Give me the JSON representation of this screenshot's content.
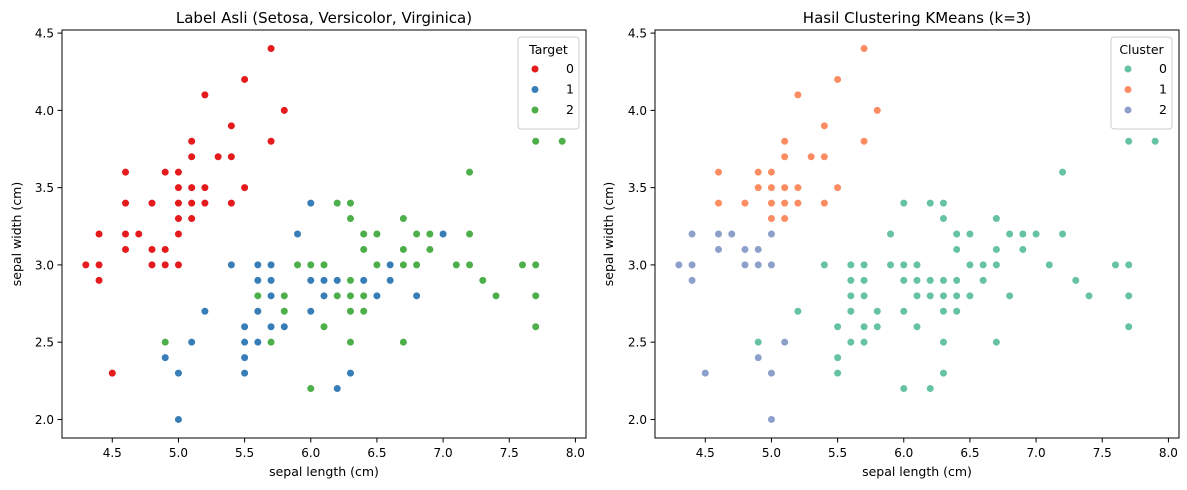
{
  "chart_data": [
    {
      "type": "scatter",
      "title": "Label Asli (Setosa, Versicolor, Virginica)",
      "xlabel": "sepal length (cm)",
      "ylabel": "sepal width (cm)",
      "xlim": [
        4.12,
        8.08
      ],
      "ylim": [
        1.88,
        4.52
      ],
      "xticks": [
        "4.5",
        "5.0",
        "5.5",
        "6.0",
        "6.5",
        "7.0",
        "7.5",
        "8.0"
      ],
      "yticks": [
        "2.0",
        "2.5",
        "3.0",
        "3.5",
        "4.0",
        "4.5"
      ],
      "legend_title": "Target",
      "legend_position": "top-right",
      "grid": false,
      "series": [
        {
          "name": "0",
          "color": "#e41a1c",
          "points": [
            [
              5.1,
              3.5
            ],
            [
              4.9,
              3.0
            ],
            [
              4.7,
              3.2
            ],
            [
              4.6,
              3.1
            ],
            [
              5.0,
              3.6
            ],
            [
              5.4,
              3.9
            ],
            [
              4.6,
              3.4
            ],
            [
              5.0,
              3.4
            ],
            [
              4.4,
              2.9
            ],
            [
              4.9,
              3.1
            ],
            [
              5.4,
              3.7
            ],
            [
              4.8,
              3.4
            ],
            [
              4.8,
              3.0
            ],
            [
              4.3,
              3.0
            ],
            [
              5.8,
              4.0
            ],
            [
              5.7,
              4.4
            ],
            [
              5.4,
              3.9
            ],
            [
              5.1,
              3.5
            ],
            [
              5.7,
              3.8
            ],
            [
              5.1,
              3.8
            ],
            [
              5.4,
              3.4
            ],
            [
              5.1,
              3.7
            ],
            [
              4.6,
              3.6
            ],
            [
              5.1,
              3.3
            ],
            [
              4.8,
              3.4
            ],
            [
              5.0,
              3.0
            ],
            [
              5.0,
              3.4
            ],
            [
              5.2,
              3.5
            ],
            [
              5.2,
              3.4
            ],
            [
              4.7,
              3.2
            ],
            [
              4.8,
              3.1
            ],
            [
              5.4,
              3.4
            ],
            [
              5.2,
              4.1
            ],
            [
              5.5,
              4.2
            ],
            [
              4.9,
              3.1
            ],
            [
              5.0,
              3.2
            ],
            [
              5.5,
              3.5
            ],
            [
              4.9,
              3.6
            ],
            [
              4.4,
              3.0
            ],
            [
              5.1,
              3.4
            ],
            [
              5.0,
              3.5
            ],
            [
              4.5,
              2.3
            ],
            [
              4.4,
              3.2
            ],
            [
              5.0,
              3.5
            ],
            [
              5.1,
              3.8
            ],
            [
              4.8,
              3.0
            ],
            [
              5.1,
              3.8
            ],
            [
              4.6,
              3.2
            ],
            [
              5.3,
              3.7
            ],
            [
              5.0,
              3.3
            ]
          ]
        },
        {
          "name": "1",
          "color": "#377eb8",
          "points": [
            [
              7.0,
              3.2
            ],
            [
              6.4,
              3.2
            ],
            [
              6.9,
              3.1
            ],
            [
              5.5,
              2.3
            ],
            [
              6.5,
              2.8
            ],
            [
              5.7,
              2.8
            ],
            [
              6.3,
              3.3
            ],
            [
              4.9,
              2.4
            ],
            [
              6.6,
              2.9
            ],
            [
              5.2,
              2.7
            ],
            [
              5.0,
              2.0
            ],
            [
              5.9,
              3.0
            ],
            [
              6.0,
              2.2
            ],
            [
              6.1,
              2.9
            ],
            [
              5.6,
              2.9
            ],
            [
              6.7,
              3.1
            ],
            [
              5.6,
              3.0
            ],
            [
              5.8,
              2.7
            ],
            [
              6.2,
              2.2
            ],
            [
              5.6,
              2.5
            ],
            [
              5.9,
              3.2
            ],
            [
              6.1,
              2.8
            ],
            [
              6.3,
              2.5
            ],
            [
              6.1,
              2.8
            ],
            [
              6.4,
              2.9
            ],
            [
              6.6,
              3.0
            ],
            [
              6.8,
              2.8
            ],
            [
              6.7,
              3.0
            ],
            [
              6.0,
              2.9
            ],
            [
              5.7,
              2.6
            ],
            [
              5.5,
              2.4
            ],
            [
              5.5,
              2.4
            ],
            [
              5.8,
              2.7
            ],
            [
              6.0,
              2.7
            ],
            [
              5.4,
              3.0
            ],
            [
              6.0,
              3.4
            ],
            [
              6.7,
              3.1
            ],
            [
              6.3,
              2.3
            ],
            [
              5.6,
              3.0
            ],
            [
              5.5,
              2.5
            ],
            [
              5.5,
              2.6
            ],
            [
              6.1,
              3.0
            ],
            [
              5.8,
              2.6
            ],
            [
              5.0,
              2.3
            ],
            [
              5.6,
              2.7
            ],
            [
              5.7,
              3.0
            ],
            [
              5.7,
              2.9
            ],
            [
              6.2,
              2.9
            ],
            [
              5.1,
              2.5
            ],
            [
              5.7,
              2.8
            ]
          ]
        },
        {
          "name": "2",
          "color": "#4daf4a",
          "points": [
            [
              6.3,
              3.3
            ],
            [
              5.8,
              2.7
            ],
            [
              7.1,
              3.0
            ],
            [
              6.3,
              2.9
            ],
            [
              6.5,
              3.0
            ],
            [
              7.6,
              3.0
            ],
            [
              4.9,
              2.5
            ],
            [
              7.3,
              2.9
            ],
            [
              6.7,
              2.5
            ],
            [
              7.2,
              3.6
            ],
            [
              6.5,
              3.2
            ],
            [
              6.4,
              2.7
            ],
            [
              6.8,
              3.0
            ],
            [
              5.7,
              2.5
            ],
            [
              5.8,
              2.8
            ],
            [
              6.4,
              3.2
            ],
            [
              6.5,
              3.0
            ],
            [
              7.7,
              3.8
            ],
            [
              7.7,
              2.6
            ],
            [
              6.0,
              2.2
            ],
            [
              6.9,
              3.2
            ],
            [
              5.6,
              2.8
            ],
            [
              7.7,
              2.8
            ],
            [
              6.3,
              2.7
            ],
            [
              6.7,
              3.3
            ],
            [
              7.2,
              3.2
            ],
            [
              6.2,
              2.8
            ],
            [
              6.1,
              3.0
            ],
            [
              6.4,
              2.8
            ],
            [
              7.2,
              3.0
            ],
            [
              7.4,
              2.8
            ],
            [
              7.9,
              3.8
            ],
            [
              6.4,
              2.8
            ],
            [
              6.3,
              2.8
            ],
            [
              6.1,
              2.6
            ],
            [
              7.7,
              3.0
            ],
            [
              6.3,
              3.4
            ],
            [
              6.4,
              3.1
            ],
            [
              6.0,
              3.0
            ],
            [
              6.9,
              3.1
            ],
            [
              6.7,
              3.1
            ],
            [
              6.9,
              3.1
            ],
            [
              5.8,
              2.7
            ],
            [
              6.8,
              3.2
            ],
            [
              6.7,
              3.3
            ],
            [
              6.7,
              3.0
            ],
            [
              6.3,
              2.5
            ],
            [
              6.5,
              3.0
            ],
            [
              6.2,
              3.4
            ],
            [
              5.9,
              3.0
            ]
          ]
        }
      ]
    },
    {
      "type": "scatter",
      "title": "Hasil Clustering KMeans (k=3)",
      "xlabel": "sepal length (cm)",
      "ylabel": "sepal width (cm)",
      "xlim": [
        4.12,
        8.08
      ],
      "ylim": [
        1.88,
        4.52
      ],
      "xticks": [
        "4.5",
        "5.0",
        "5.5",
        "6.0",
        "6.5",
        "7.0",
        "7.5",
        "8.0"
      ],
      "yticks": [
        "2.0",
        "2.5",
        "3.0",
        "3.5",
        "4.0",
        "4.5"
      ],
      "legend_title": "Cluster",
      "legend_position": "top-right",
      "grid": false,
      "series": [
        {
          "name": "0",
          "color": "#66c2a5",
          "points": [
            [
              7.0,
              3.2
            ],
            [
              6.4,
              3.2
            ],
            [
              6.9,
              3.1
            ],
            [
              5.5,
              2.3
            ],
            [
              6.5,
              2.8
            ],
            [
              5.7,
              2.8
            ],
            [
              6.3,
              3.3
            ],
            [
              4.9,
              2.5
            ],
            [
              6.6,
              2.9
            ],
            [
              5.2,
              2.7
            ],
            [
              5.9,
              3.0
            ],
            [
              6.0,
              2.2
            ],
            [
              6.1,
              2.9
            ],
            [
              5.6,
              2.9
            ],
            [
              6.7,
              3.1
            ],
            [
              5.6,
              3.0
            ],
            [
              5.8,
              2.7
            ],
            [
              6.2,
              2.2
            ],
            [
              5.6,
              2.5
            ],
            [
              5.9,
              3.2
            ],
            [
              6.1,
              2.8
            ],
            [
              6.3,
              2.5
            ],
            [
              6.4,
              2.9
            ],
            [
              6.6,
              3.0
            ],
            [
              6.8,
              2.8
            ],
            [
              6.7,
              3.0
            ],
            [
              6.0,
              2.9
            ],
            [
              5.7,
              2.6
            ],
            [
              5.5,
              2.4
            ],
            [
              5.8,
              2.7
            ],
            [
              6.0,
              2.7
            ],
            [
              5.4,
              3.0
            ],
            [
              6.0,
              3.4
            ],
            [
              6.3,
              2.3
            ],
            [
              5.5,
              2.6
            ],
            [
              6.1,
              3.0
            ],
            [
              5.8,
              2.6
            ],
            [
              5.6,
              2.7
            ],
            [
              5.7,
              3.0
            ],
            [
              5.7,
              2.9
            ],
            [
              6.2,
              2.9
            ],
            [
              5.7,
              2.8
            ],
            [
              6.3,
              2.9
            ],
            [
              7.1,
              3.0
            ],
            [
              7.6,
              3.0
            ],
            [
              7.3,
              2.9
            ],
            [
              6.7,
              2.5
            ],
            [
              7.2,
              3.6
            ],
            [
              6.5,
              3.2
            ],
            [
              6.4,
              2.7
            ],
            [
              5.7,
              2.5
            ],
            [
              7.7,
              3.8
            ],
            [
              7.7,
              2.6
            ],
            [
              6.9,
              3.2
            ],
            [
              7.7,
              2.8
            ],
            [
              6.7,
              3.3
            ],
            [
              7.2,
              3.2
            ],
            [
              6.2,
              2.8
            ],
            [
              7.4,
              2.8
            ],
            [
              7.9,
              3.8
            ],
            [
              6.1,
              2.6
            ],
            [
              7.7,
              3.0
            ],
            [
              6.3,
              3.4
            ],
            [
              6.4,
              3.1
            ],
            [
              6.0,
              3.0
            ],
            [
              6.8,
              3.2
            ],
            [
              6.2,
              3.4
            ],
            [
              6.3,
              2.7
            ],
            [
              6.4,
              2.8
            ],
            [
              5.6,
              2.8
            ],
            [
              6.5,
              3.0
            ],
            [
              6.3,
              2.8
            ]
          ]
        },
        {
          "name": "1",
          "color": "#fc8d62",
          "points": [
            [
              5.1,
              3.5
            ],
            [
              5.0,
              3.6
            ],
            [
              5.4,
              3.9
            ],
            [
              4.6,
              3.4
            ],
            [
              5.0,
              3.4
            ],
            [
              5.4,
              3.7
            ],
            [
              4.8,
              3.4
            ],
            [
              5.8,
              4.0
            ],
            [
              5.7,
              4.4
            ],
            [
              5.7,
              3.8
            ],
            [
              5.1,
              3.8
            ],
            [
              5.4,
              3.4
            ],
            [
              5.1,
              3.7
            ],
            [
              4.6,
              3.6
            ],
            [
              5.1,
              3.3
            ],
            [
              5.0,
              3.5
            ],
            [
              5.2,
              3.5
            ],
            [
              5.2,
              3.4
            ],
            [
              5.2,
              4.1
            ],
            [
              5.5,
              4.2
            ],
            [
              5.5,
              3.5
            ],
            [
              4.9,
              3.6
            ],
            [
              5.1,
              3.4
            ],
            [
              5.3,
              3.7
            ],
            [
              5.0,
              3.3
            ],
            [
              4.9,
              3.5
            ]
          ]
        },
        {
          "name": "2",
          "color": "#8da0cb",
          "points": [
            [
              4.9,
              3.0
            ],
            [
              4.7,
              3.2
            ],
            [
              4.6,
              3.1
            ],
            [
              4.4,
              2.9
            ],
            [
              4.9,
              3.1
            ],
            [
              4.8,
              3.0
            ],
            [
              4.3,
              3.0
            ],
            [
              4.4,
              3.2
            ],
            [
              5.0,
              3.0
            ],
            [
              4.8,
              3.1
            ],
            [
              5.0,
              3.2
            ],
            [
              4.4,
              3.0
            ],
            [
              4.5,
              2.3
            ],
            [
              4.6,
              3.2
            ],
            [
              4.9,
              2.4
            ],
            [
              5.0,
              2.0
            ],
            [
              5.1,
              2.5
            ],
            [
              5.0,
              2.3
            ]
          ]
        }
      ]
    }
  ]
}
